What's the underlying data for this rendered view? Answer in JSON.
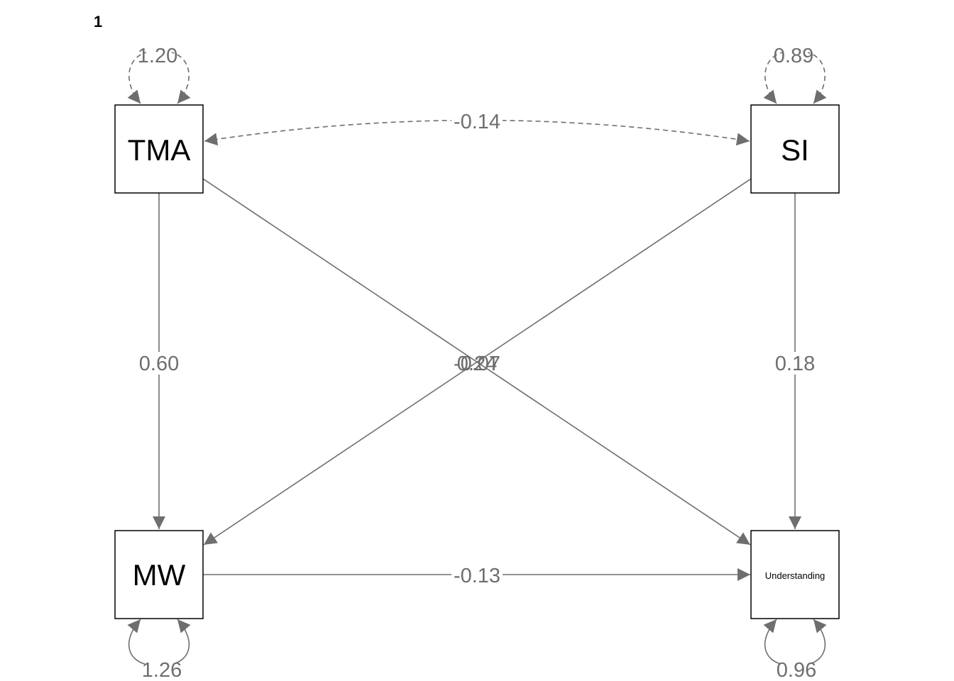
{
  "panel_label": "1",
  "colors": {
    "edge": "#6e6e6e",
    "node_border": "#000000",
    "node_text": "#000000",
    "background": "#ffffff"
  },
  "nodes": {
    "tma": {
      "label": "TMA"
    },
    "si": {
      "label": "SI"
    },
    "mw": {
      "label": "MW"
    },
    "understanding": {
      "label": "Understanding"
    }
  },
  "variances": {
    "tma": "1.20",
    "si": "0.89",
    "mw": "1.26",
    "understanding": "0.96"
  },
  "paths": {
    "tma_mw": "0.60",
    "si_understanding": "0.18",
    "tma_understanding": "-0.07",
    "si_mw": "0.24",
    "mw_understanding": "-0.13"
  },
  "covariances": {
    "tma_si": "-0.14"
  }
}
